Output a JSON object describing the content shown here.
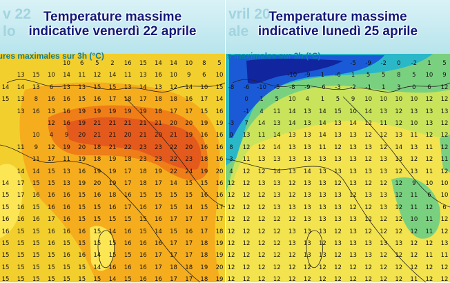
{
  "left_panel": {
    "ghost_text": "v 22\nlo",
    "title_line1": "Temperature massime",
    "title_line2": "indicative venerdì 22 aprile",
    "subtitle": "atures maximales sur 3h (°C)",
    "colors": [
      "#f3cf2d",
      "#f6ad1d",
      "#ef7d18",
      "#e45a1c",
      "#fce653"
    ],
    "grid_rows": [
      "10 6 5 2 16 15 14 14 10 8 5",
      "13 15 10 14 11 12 14 11 13 16 10 9 6 10",
      "14 14 13 6 13 13 15 15 13 14 13 12 14 10 15",
      "15 13 8 16 16 15 16 17 18 17 18 18 16 17 14",
      "13 16 13 16 19 19 19 19 19 18 17 17 15 16",
      "12 16 19 21 21 21 21 21 20 20 19 19",
      "10 4 9 20 21 21 20 21 20 21 19 16 16",
      "11 9 12 19 20 18 21 22 23 23 22 20 16 16",
      "11 17 11 19 18 19 18 23 23 22 23 18 16",
      "14 14 15 13 16 19 19 17 18 19 22 24 19 20",
      "14 17 15 15 13 19 20 19 17 18 17 14 15 15 16",
      "15 17 16 16 16 15 16 18 16 15 15 15 15 16 16",
      "15 16 15 16 16 15 15 16 17 16 17 15 14 15 17",
      "16 16 16 17 16 15 15 15 15 15 16 17 17 17 17",
      "16 15 15 16 16 16 15 14 16 15 14 15 16 17 18",
      "15 15 15 16 15 15 15 15 16 16 16 17 17 18 19",
      "15 15 15 15 16 16 14 15 15 16 17 17 17 18 19",
      "15 15 15 15 15 15 14 16 16 16 17 18 18 19 20",
      "15 15 15 15 15 15 15 14 15 16 16 17 17 18 19"
    ]
  },
  "right_panel": {
    "ghost_text": "vril 20\nale",
    "title_line1": "Temperature massime",
    "title_line2": "indicative lunedì 25 aprile",
    "subtitle": "s maximales sur 3h (°C)",
    "colors": [
      "#f3e34e",
      "#c9e45a",
      "#79d180",
      "#2ab8c9",
      "#1a5ad6",
      "#11259e"
    ],
    "grid_rows": [
      "-5 -9 -2 0 -2 1 5",
      "-10 -9 1 -6 1 5 5 8 5 10 9",
      "-8 -6 -10 -5 -8 -9 -6 -3 -2 -1 1 3 0 6 12",
      "0 1 5 10 4 1 5 9 10 10 10 10 12 12",
      "-1 4 11 14 13 14 15 10 14 13 12 13 13 13",
      "-3 7 14 13 14 13 14 13 14 12 11 12 10 13 12",
      "0 13 11 14 13 13 14 13 13 12 12 13 11 12 12",
      "8 12 12 14 13 13 11 12 13 13 12 14 13 11 12",
      "3 11 13 13 13 13 13 13 13 12 13 13 12 12 11",
      "4 12 12 14 13 14 13 13 13 13 13 12 13 11 12",
      "12 12 13 13 12 13 13 12 13 12 12 12 9 10 10",
      "12 12 12 13 12 13 13 13 12 13 13 12 11 6 10",
      "12 12 12 13 13 13 13 13 12 12 13 12 11 12 6",
      "12 12 12 12 12 13 13 13 13 12 12 12 10 11 12",
      "12 12 12 12 13 13 13 12 13 12 12 12 12 11 12",
      "12 12 12 12 13 13 12 13 13 13 13 13 12 12 13",
      "12 12 12 12 12 13 13 12 13 13 12 12 12 11 11",
      "12 12 12 12 12 12 12 12 12 12 12 12 12 12 12",
      "12 12 12 12 12 12 12 12 12 12 12 12 11 12 12"
    ]
  }
}
